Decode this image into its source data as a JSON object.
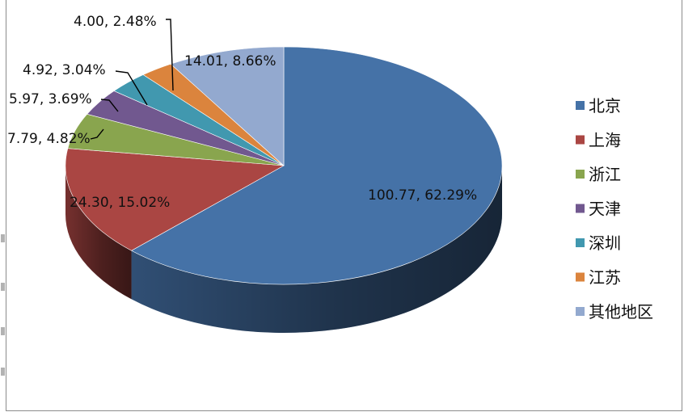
{
  "chart_data": {
    "type": "pie",
    "three_d": true,
    "title": "",
    "categories": [
      "北京",
      "上海",
      "浙江",
      "天津",
      "深圳",
      "江苏",
      "其他地区"
    ],
    "values": [
      100.77,
      24.3,
      7.79,
      5.97,
      4.92,
      4.0,
      14.01
    ],
    "percents": [
      "62.29%",
      "15.02%",
      "4.82%",
      "3.69%",
      "3.04%",
      "2.48%",
      "8.66%"
    ],
    "labels": [
      "100.77, 62.29%",
      "24.30, 15.02%",
      "7.79, 4.82%",
      "5.97, 3.69%",
      "4.92, 3.04%",
      "4.00, 2.48%",
      "14.01, 8.66%"
    ],
    "colors": [
      "#4572A7",
      "#AA4643",
      "#89A54E",
      "#71588F",
      "#4198AF",
      "#DB843D",
      "#93A9CF"
    ],
    "legend_position": "right"
  }
}
